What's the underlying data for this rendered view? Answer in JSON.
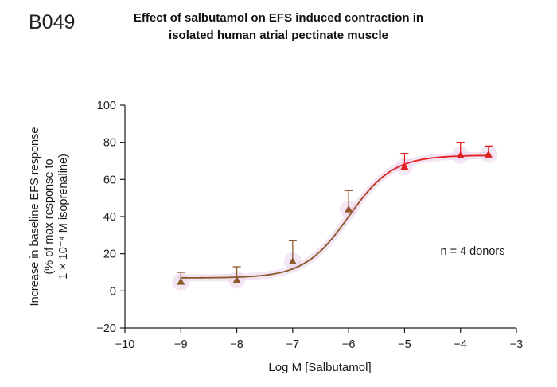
{
  "panel_id": "B049",
  "annotation": "n = 4 donors",
  "chart_data": {
    "type": "scatter",
    "title_lines": [
      "Effect of salbutamol on EFS induced contraction in",
      "isolated human atrial pectinate muscle"
    ],
    "xlabel": "Log M [Salbutamol]",
    "ylabel_lines": [
      "Increase in baseline EFS response",
      "(% of max response to",
      "1 × 10⁻⁴ M isoprenaline)"
    ],
    "xlim": [
      -10,
      -3
    ],
    "ylim": [
      -20,
      100
    ],
    "x_ticks": [
      -10,
      -9,
      -8,
      -7,
      -6,
      -5,
      -4,
      -3
    ],
    "x_tick_labels": [
      "−10",
      "−9",
      "−8",
      "−7",
      "−6",
      "−5",
      "−4",
      "−3"
    ],
    "y_ticks": [
      -20,
      0,
      20,
      40,
      60,
      80,
      100
    ],
    "y_tick_labels": [
      "−20",
      "0",
      "20",
      "40",
      "60",
      "80",
      "100"
    ],
    "grid": false,
    "points": [
      {
        "x": -9,
        "y": 5,
        "err_upper": 10
      },
      {
        "x": -8,
        "y": 6,
        "err_upper": 13
      },
      {
        "x": -7,
        "y": 16,
        "err_upper": 27
      },
      {
        "x": -6,
        "y": 44,
        "err_upper": 54
      },
      {
        "x": -5,
        "y": 67,
        "err_upper": 74
      },
      {
        "x": -4,
        "y": 73,
        "err_upper": 80
      },
      {
        "x": -3.5,
        "y": 73.5,
        "err_upper": 78
      }
    ],
    "fit_curve": {
      "bottom": 7,
      "top": 73,
      "log_ec50": -6.0,
      "hill_slope": 1.1,
      "x_range": [
        -9,
        -3.5
      ]
    },
    "colors": {
      "low": "#8a5a2b",
      "high": "#e02020",
      "glow": "#ead0ea",
      "axis": "#1a1a1a"
    }
  }
}
